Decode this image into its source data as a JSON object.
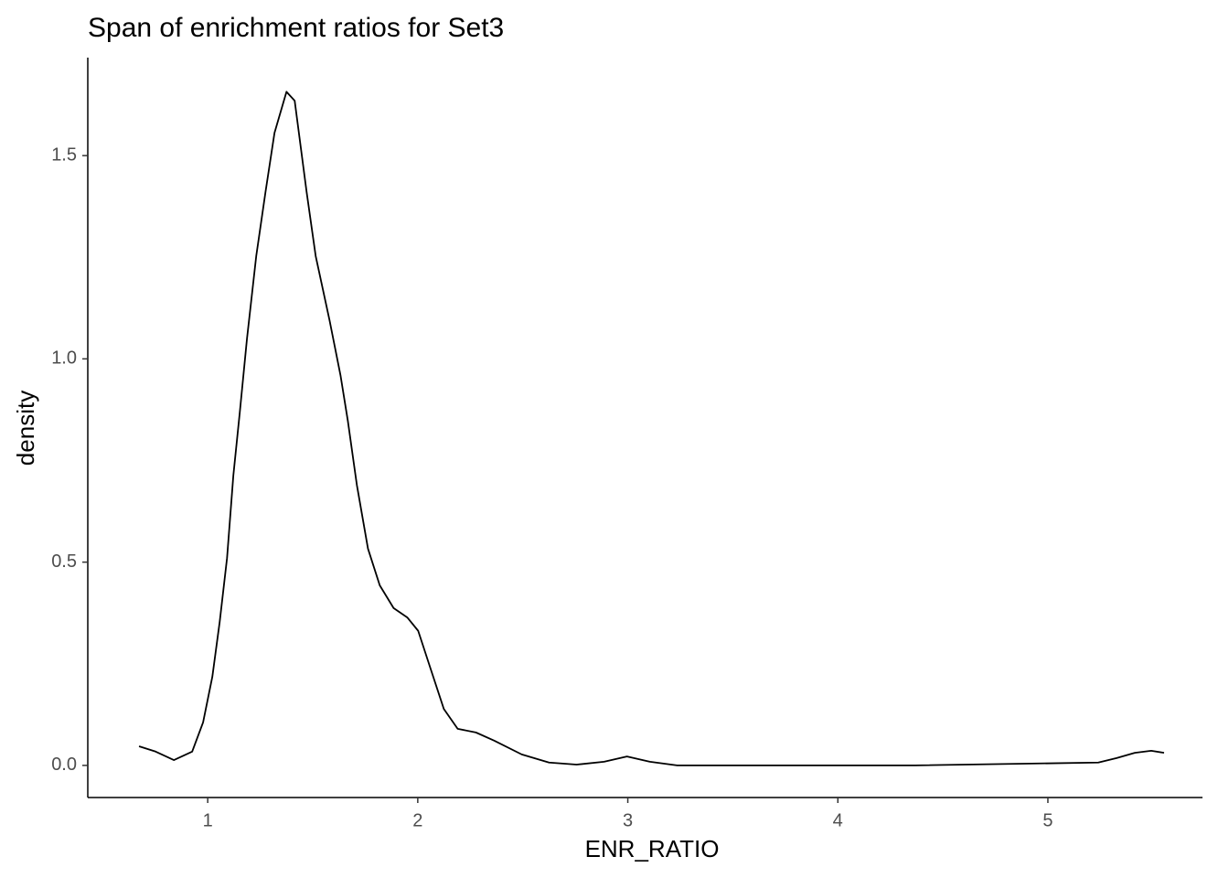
{
  "chart_data": {
    "type": "line",
    "title": "Span of enrichment ratios for Set3",
    "x_label": "ENR_RATIO",
    "y_label": "density",
    "x": [
      0.673,
      0.752,
      0.839,
      0.926,
      0.978,
      1.022,
      1.057,
      1.092,
      1.122,
      1.153,
      1.187,
      1.231,
      1.275,
      1.318,
      1.375,
      1.414,
      1.471,
      1.514,
      1.58,
      1.632,
      1.667,
      1.71,
      1.763,
      1.819,
      1.885,
      1.95,
      2.002,
      2.059,
      2.124,
      2.19,
      2.277,
      2.364,
      2.495,
      2.625,
      2.756,
      2.887,
      2.996,
      3.105,
      3.235,
      3.497,
      4.368,
      5.24,
      5.327,
      5.414,
      5.492,
      5.553
    ],
    "values": [
      0.047,
      0.034,
      0.013,
      0.034,
      0.106,
      0.218,
      0.353,
      0.51,
      0.713,
      0.87,
      1.05,
      1.253,
      1.41,
      1.556,
      1.657,
      1.635,
      1.41,
      1.253,
      1.095,
      0.96,
      0.848,
      0.69,
      0.533,
      0.443,
      0.387,
      0.364,
      0.331,
      0.241,
      0.139,
      0.09,
      0.081,
      0.061,
      0.027,
      0.007,
      0.002,
      0.009,
      0.022,
      0.009,
      0,
      0,
      0,
      0.007,
      0.018,
      0.031,
      0.036,
      0.031
    ],
    "color": "#000000",
    "xlim": [
      0.429,
      5.736
    ],
    "ylim": [
      -0.079,
      1.741
    ],
    "xticks": [
      1,
      2,
      3,
      4,
      5
    ],
    "yticks": [
      {
        "value": 0,
        "label": "0.0"
      },
      {
        "value": 0.5,
        "label": "0.5"
      },
      {
        "value": 1,
        "label": "1.0"
      },
      {
        "value": 1.5,
        "label": "1.5"
      }
    ],
    "grid": false
  }
}
